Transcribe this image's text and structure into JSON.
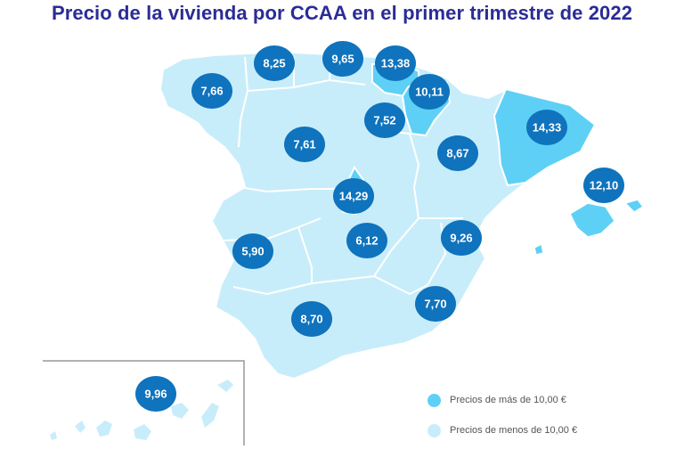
{
  "title": "Precio de la vivienda por CCAA en el primer trimestre de 2022",
  "colors": {
    "title": "#2b2c96",
    "high": "#5ed0f5",
    "low": "#c8edfa",
    "badge": "#0f73bd",
    "border": "#ffffff",
    "inset_frame": "#999999"
  },
  "legend": {
    "high_label": "Precios de más de 10,00 €",
    "low_label": "Precios de menos de 10,00 €"
  },
  "regions": [
    {
      "name": "Galicia",
      "value": "7,66",
      "category": "low"
    },
    {
      "name": "Asturias",
      "value": "8,25",
      "category": "low"
    },
    {
      "name": "Cantabria",
      "value": "9,65",
      "category": "low"
    },
    {
      "name": "País Vasco",
      "value": "13,38",
      "category": "high"
    },
    {
      "name": "Navarra",
      "value": "10,11",
      "category": "high"
    },
    {
      "name": "La Rioja",
      "value": "7,52",
      "category": "low"
    },
    {
      "name": "Castilla y León",
      "value": "7,61",
      "category": "low"
    },
    {
      "name": "Aragón",
      "value": "8,67",
      "category": "low"
    },
    {
      "name": "Cataluña",
      "value": "14,33",
      "category": "high"
    },
    {
      "name": "Baleares",
      "value": "12,10",
      "category": "high"
    },
    {
      "name": "Madrid",
      "value": "14,29",
      "category": "high"
    },
    {
      "name": "Extremadura",
      "value": "5,90",
      "category": "low"
    },
    {
      "name": "Castilla-La Mancha",
      "value": "6,12",
      "category": "low"
    },
    {
      "name": "Comunidad Valenciana",
      "value": "9,26",
      "category": "low"
    },
    {
      "name": "Murcia",
      "value": "7,70",
      "category": "low"
    },
    {
      "name": "Andalucía",
      "value": "8,70",
      "category": "low"
    },
    {
      "name": "Canarias",
      "value": "9,96",
      "category": "low"
    }
  ]
}
